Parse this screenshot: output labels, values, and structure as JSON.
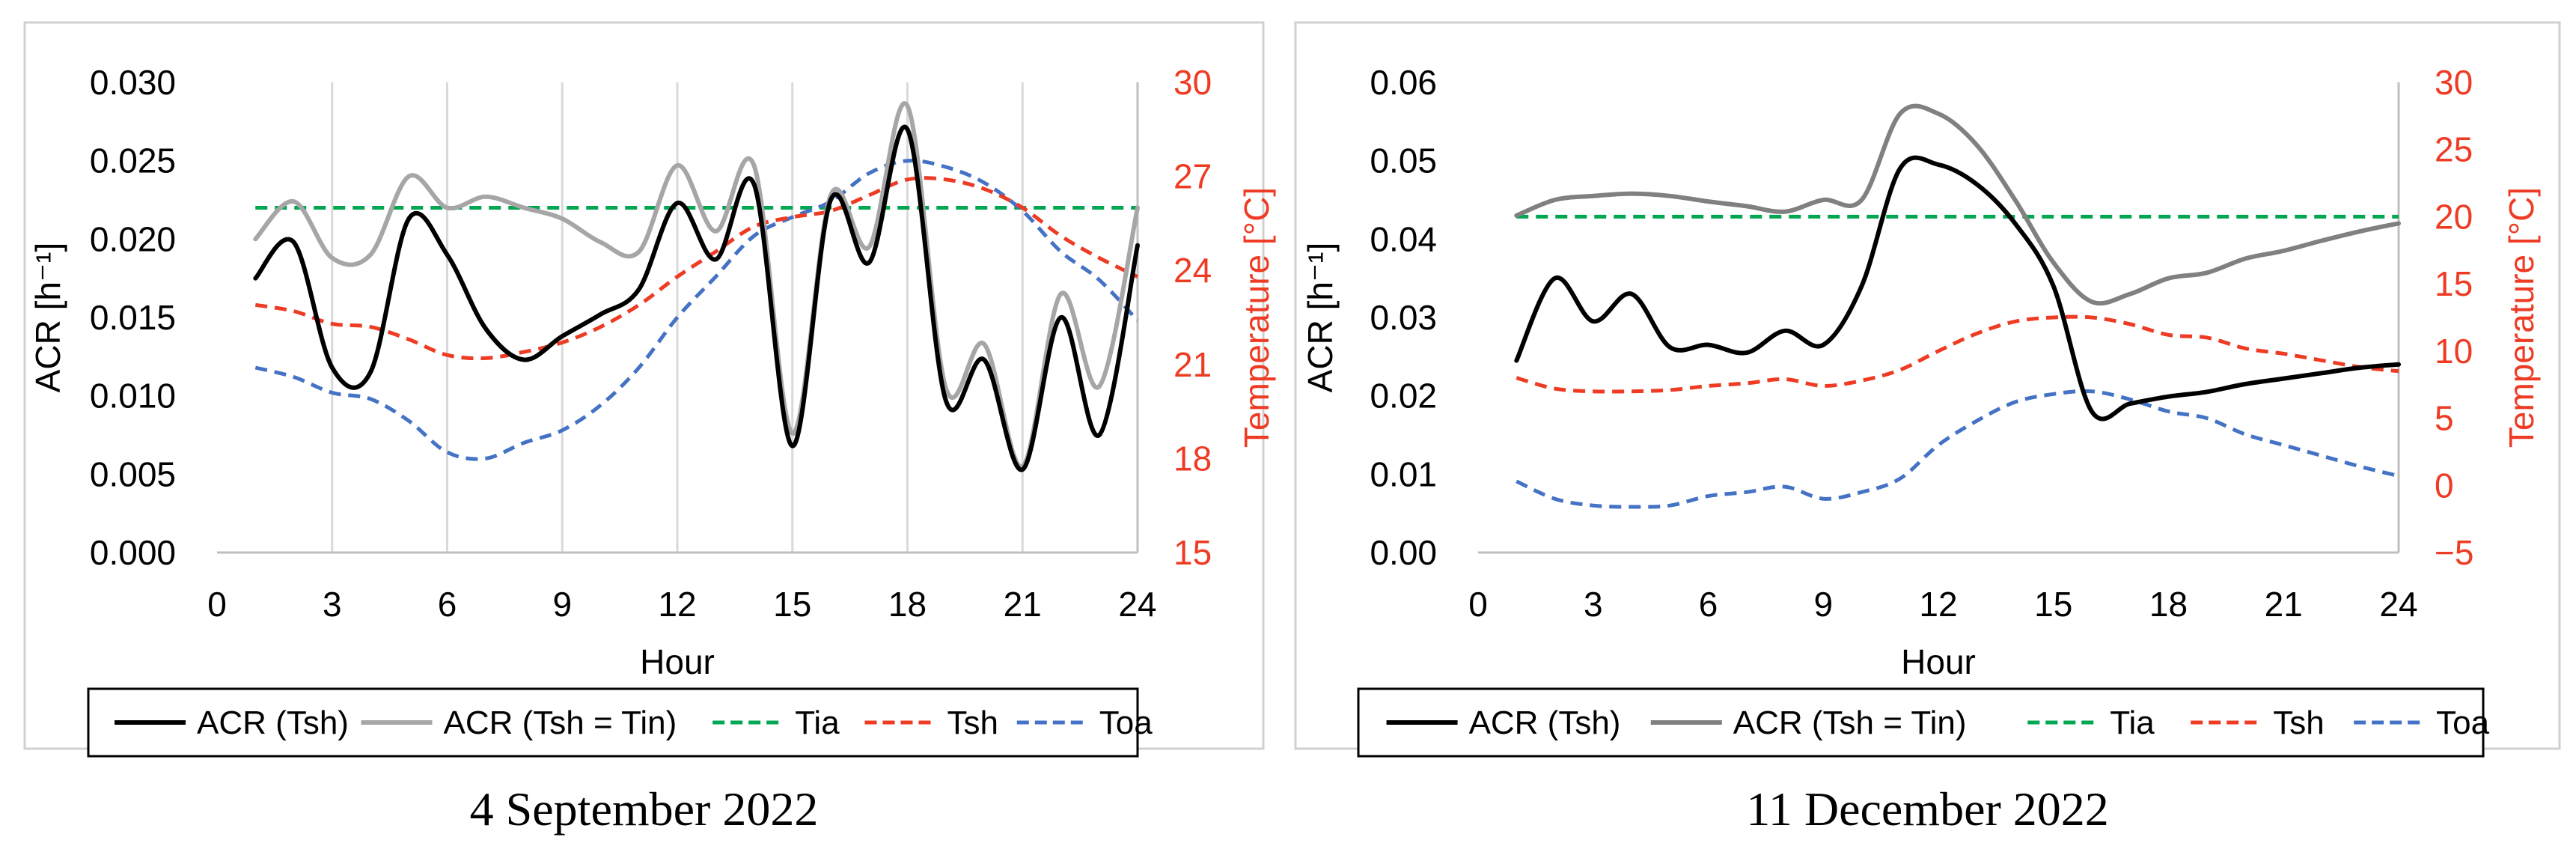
{
  "chart_data": [
    {
      "type": "line",
      "caption": "4 September 2022",
      "xlabel": "Hour",
      "ylabel_left": "ACR [h⁻¹]",
      "ylabel_right": "Temperature [°C]",
      "xlim": [
        0,
        24
      ],
      "xticks": [
        "0",
        "3",
        "6",
        "9",
        "12",
        "15",
        "18",
        "21",
        "24"
      ],
      "ylim_left": [
        0,
        0.03
      ],
      "yticks_left": [
        "0.000",
        "0.005",
        "0.010",
        "0.015",
        "0.020",
        "0.025",
        "0.030"
      ],
      "ylim_right": [
        15,
        30
      ],
      "yticks_right": [
        "15",
        "18",
        "21",
        "24",
        "27",
        "30"
      ],
      "grid": "vertical",
      "legend": [
        "ACR (Tsh)",
        "ACR (Tsh = Tin)",
        "Tia",
        "Tsh",
        "Toa"
      ],
      "x": [
        1,
        2,
        3,
        4,
        5,
        6,
        7,
        8,
        9,
        10,
        11,
        12,
        13,
        14,
        15,
        16,
        17,
        18,
        19,
        20,
        21,
        22,
        23,
        24
      ],
      "series": [
        {
          "name": "ACR (Tsh)",
          "axis": "left",
          "color": "#000000",
          "style": "solid",
          "values": [
            0.0175,
            0.0198,
            0.0118,
            0.0115,
            0.0213,
            0.019,
            0.0143,
            0.0123,
            0.0138,
            0.0152,
            0.0168,
            0.0223,
            0.0187,
            0.0235,
            0.0068,
            0.0225,
            0.0185,
            0.027,
            0.0097,
            0.0123,
            0.0053,
            0.015,
            0.0075,
            0.0196
          ]
        },
        {
          "name": "ACR (Tsh = Tin)",
          "axis": "left",
          "color": "#a6a6a6",
          "style": "solid",
          "values": [
            0.02,
            0.0224,
            0.0188,
            0.019,
            0.024,
            0.022,
            0.0227,
            0.022,
            0.0213,
            0.0198,
            0.0192,
            0.0247,
            0.0205,
            0.0247,
            0.0076,
            0.0228,
            0.0195,
            0.0285,
            0.0105,
            0.0133,
            0.0055,
            0.0165,
            0.0106,
            0.022
          ]
        },
        {
          "name": "Tia",
          "axis": "right",
          "color": "#00a651",
          "style": "dashed",
          "values": [
            26,
            26,
            26,
            26,
            26,
            26,
            26,
            26,
            26,
            26,
            26,
            26,
            26,
            26,
            26,
            26,
            26,
            26,
            26,
            26,
            26,
            26,
            26,
            26
          ]
        },
        {
          "name": "Tsh",
          "axis": "right",
          "color": "#ee3b24",
          "style": "dashed",
          "values": [
            22.9,
            22.7,
            22.3,
            22.2,
            21.8,
            21.3,
            21.2,
            21.4,
            21.7,
            22.2,
            22.9,
            23.8,
            24.6,
            25.4,
            25.7,
            25.9,
            26.4,
            26.9,
            26.9,
            26.6,
            26.0,
            25.1,
            24.4,
            23.8
          ]
        },
        {
          "name": "Toa",
          "axis": "right",
          "color": "#4472c4",
          "style": "dashed",
          "values": [
            20.9,
            20.6,
            20.1,
            19.9,
            19.2,
            18.2,
            18.0,
            18.5,
            18.9,
            19.7,
            20.9,
            22.5,
            23.8,
            25.1,
            25.7,
            26.2,
            27.1,
            27.5,
            27.3,
            26.8,
            25.9,
            24.6,
            23.7,
            22.4
          ]
        }
      ]
    },
    {
      "type": "line",
      "caption": "11 December 2022",
      "xlabel": "Hour",
      "ylabel_left": "ACR [h⁻¹]",
      "ylabel_right": "Temperature [°C]",
      "xlim": [
        0,
        24
      ],
      "xticks": [
        "0",
        "3",
        "6",
        "9",
        "12",
        "15",
        "18",
        "21",
        "24"
      ],
      "ylim_left": [
        0,
        0.06
      ],
      "yticks_left": [
        "0.00",
        "0.01",
        "0.02",
        "0.03",
        "0.04",
        "0.05",
        "0.06"
      ],
      "ylim_right": [
        -5,
        30
      ],
      "yticks_right": [
        "−5",
        "0",
        "5",
        "10",
        "15",
        "20",
        "25",
        "30"
      ],
      "grid": "none",
      "legend": [
        "ACR (Tsh)",
        "ACR (Tsh = Tin)",
        "Tia",
        "Tsh",
        "Toa"
      ],
      "x": [
        1,
        2,
        3,
        4,
        5,
        6,
        7,
        8,
        9,
        10,
        11,
        12,
        13,
        14,
        15,
        16,
        17,
        18,
        19,
        20,
        21,
        22,
        23,
        24
      ],
      "series": [
        {
          "name": "ACR (Tsh)",
          "axis": "left",
          "color": "#000000",
          "style": "solid",
          "values": [
            0.0245,
            0.035,
            0.0295,
            0.033,
            0.0262,
            0.0265,
            0.0255,
            0.0283,
            0.0265,
            0.034,
            0.049,
            0.0495,
            0.047,
            0.042,
            0.034,
            0.018,
            0.019,
            0.0199,
            0.0205,
            0.0215,
            0.0222,
            0.0229,
            0.0236,
            0.024
          ]
        },
        {
          "name": "ACR (Tsh = Tin)",
          "axis": "left",
          "color": "#808080",
          "style": "solid",
          "values": [
            0.043,
            0.045,
            0.0455,
            0.0458,
            0.0455,
            0.0448,
            0.0442,
            0.0435,
            0.045,
            0.045,
            0.056,
            0.056,
            0.052,
            0.045,
            0.037,
            0.032,
            0.033,
            0.035,
            0.0357,
            0.0375,
            0.0385,
            0.0398,
            0.041,
            0.042
          ]
        },
        {
          "name": "Tia",
          "axis": "right",
          "color": "#00a651",
          "style": "dashed",
          "values": [
            20,
            20,
            20,
            20,
            20,
            20,
            20,
            20,
            20,
            20,
            20,
            20,
            20,
            20,
            20,
            20,
            20,
            20,
            20,
            20,
            20,
            20,
            20,
            20
          ]
        },
        {
          "name": "Tsh",
          "axis": "right",
          "color": "#ee3b24",
          "style": "dashed",
          "values": [
            8.0,
            7.2,
            7.0,
            7.0,
            7.1,
            7.4,
            7.6,
            7.9,
            7.4,
            7.8,
            8.6,
            10.0,
            11.3,
            12.2,
            12.5,
            12.5,
            12.0,
            11.2,
            11.0,
            10.2,
            9.8,
            9.3,
            8.8,
            8.5
          ]
        },
        {
          "name": "Toa",
          "axis": "right",
          "color": "#4472c4",
          "style": "dashed",
          "values": [
            0.3,
            -1.0,
            -1.5,
            -1.6,
            -1.5,
            -0.8,
            -0.5,
            -0.1,
            -1.0,
            -0.5,
            0.5,
            3.0,
            4.8,
            6.2,
            6.8,
            7.0,
            6.4,
            5.5,
            5.0,
            3.8,
            3.0,
            2.2,
            1.4,
            0.7
          ]
        }
      ]
    }
  ]
}
